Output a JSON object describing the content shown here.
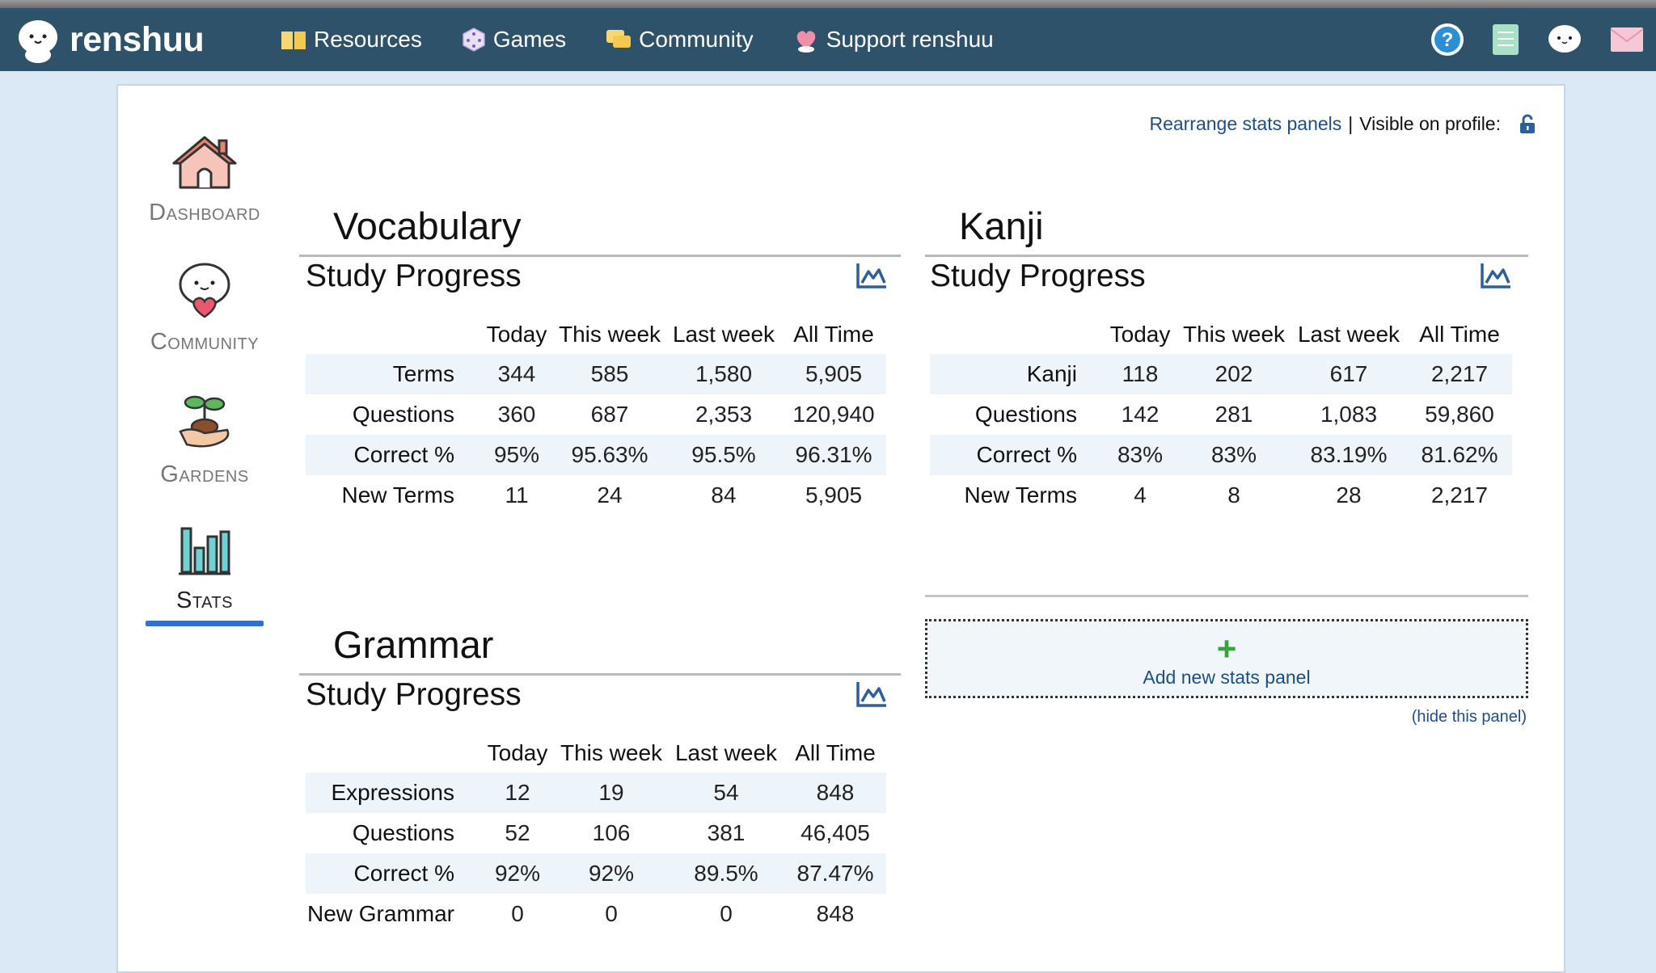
{
  "brand": {
    "name": "renshuu"
  },
  "nav": {
    "links": [
      {
        "label": "Resources",
        "icon": "book-icon"
      },
      {
        "label": "Games",
        "icon": "dice-icon"
      },
      {
        "label": "Community",
        "icon": "chat-icon"
      },
      {
        "label": "Support renshuu",
        "icon": "heart-icon"
      }
    ],
    "icons": [
      "help-icon",
      "notebook-icon",
      "mascot-icon",
      "mail-icon"
    ]
  },
  "sidebar": {
    "items": [
      {
        "label": "Dashboard",
        "icon": "house-icon"
      },
      {
        "label": "Community",
        "icon": "mascot-heart-icon"
      },
      {
        "label": "Gardens",
        "icon": "sprout-icon"
      },
      {
        "label": "Stats",
        "icon": "bar-chart-icon",
        "active": true
      }
    ]
  },
  "toplinks": {
    "rearrange": "Rearrange stats panels",
    "separator": "|",
    "visible": "Visible on profile:"
  },
  "vocabulary": {
    "title": "Vocabulary",
    "subtitle": "Study Progress",
    "headers": [
      "Today",
      "This week",
      "Last week",
      "All Time"
    ],
    "rows": [
      {
        "label": "Terms",
        "values": [
          "344",
          "585",
          "1,580",
          "5,905"
        ]
      },
      {
        "label": "Questions",
        "values": [
          "360",
          "687",
          "2,353",
          "120,940"
        ]
      },
      {
        "label": "Correct %",
        "values": [
          "95%",
          "95.63%",
          "95.5%",
          "96.31%"
        ]
      },
      {
        "label": "New Terms",
        "values": [
          "11",
          "24",
          "84",
          "5,905"
        ]
      }
    ]
  },
  "kanji": {
    "title": "Kanji",
    "subtitle": "Study Progress",
    "headers": [
      "Today",
      "This week",
      "Last week",
      "All Time"
    ],
    "rows": [
      {
        "label": "Kanji",
        "values": [
          "118",
          "202",
          "617",
          "2,217"
        ]
      },
      {
        "label": "Questions",
        "values": [
          "142",
          "281",
          "1,083",
          "59,860"
        ]
      },
      {
        "label": "Correct %",
        "values": [
          "83%",
          "83%",
          "83.19%",
          "81.62%"
        ]
      },
      {
        "label": "New Terms",
        "values": [
          "4",
          "8",
          "28",
          "2,217"
        ]
      }
    ]
  },
  "grammar": {
    "title": "Grammar",
    "subtitle": "Study Progress",
    "headers": [
      "Today",
      "This week",
      "Last week",
      "All Time"
    ],
    "rows": [
      {
        "label": "Expressions",
        "values": [
          "12",
          "19",
          "54",
          "848"
        ]
      },
      {
        "label": "Questions",
        "values": [
          "52",
          "106",
          "381",
          "46,405"
        ]
      },
      {
        "label": "Correct %",
        "values": [
          "92%",
          "92%",
          "89.5%",
          "87.47%"
        ]
      },
      {
        "label": "New Grammar",
        "values": [
          "0",
          "0",
          "0",
          "848"
        ]
      }
    ]
  },
  "addpanel": {
    "plus": "+",
    "label": "Add new stats panel",
    "hide": "(hide this panel)"
  },
  "colors": {
    "navbar": "#2d526a",
    "background": "#dbe8f5",
    "link": "#1d4e85",
    "active": "#2f6fd6",
    "rowshade": "#eef5fa"
  }
}
